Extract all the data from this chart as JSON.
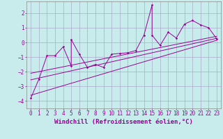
{
  "xlabel": "Windchill (Refroidissement éolien,°C)",
  "bg_color": "#c8ecec",
  "line_color": "#990099",
  "grid_color": "#aaaacc",
  "xlim": [
    -0.5,
    23.5
  ],
  "ylim": [
    -4.5,
    2.8
  ],
  "xticks": [
    0,
    1,
    2,
    3,
    4,
    5,
    6,
    7,
    8,
    9,
    10,
    11,
    12,
    13,
    14,
    15,
    16,
    17,
    18,
    19,
    20,
    21,
    22,
    23
  ],
  "yticks": [
    -4,
    -3,
    -2,
    -1,
    0,
    1,
    2
  ],
  "font_color": "#990099",
  "xlabel_fontsize": 6.5,
  "tick_fontsize": 5.5,
  "main_x": [
    0,
    1,
    2,
    3,
    4,
    5,
    5,
    6,
    7,
    8,
    9,
    10,
    11,
    12,
    13,
    14,
    15,
    15,
    16,
    17,
    18,
    19,
    20,
    21,
    22,
    23
  ],
  "main_y": [
    -3.8,
    -2.5,
    -0.9,
    -0.9,
    -0.3,
    -1.6,
    0.2,
    -0.8,
    -1.7,
    -1.5,
    -1.7,
    -0.8,
    -0.75,
    -0.7,
    -0.55,
    0.5,
    2.55,
    0.5,
    -0.2,
    0.7,
    0.3,
    1.25,
    1.5,
    1.2,
    1.0,
    0.25
  ],
  "trend1_x": [
    0,
    23
  ],
  "trend1_y": [
    -3.6,
    0.15
  ],
  "trend2_x": [
    0,
    23
  ],
  "trend2_y": [
    -2.55,
    0.28
  ],
  "trend3_x": [
    0,
    23
  ],
  "trend3_y": [
    -2.1,
    0.42
  ]
}
